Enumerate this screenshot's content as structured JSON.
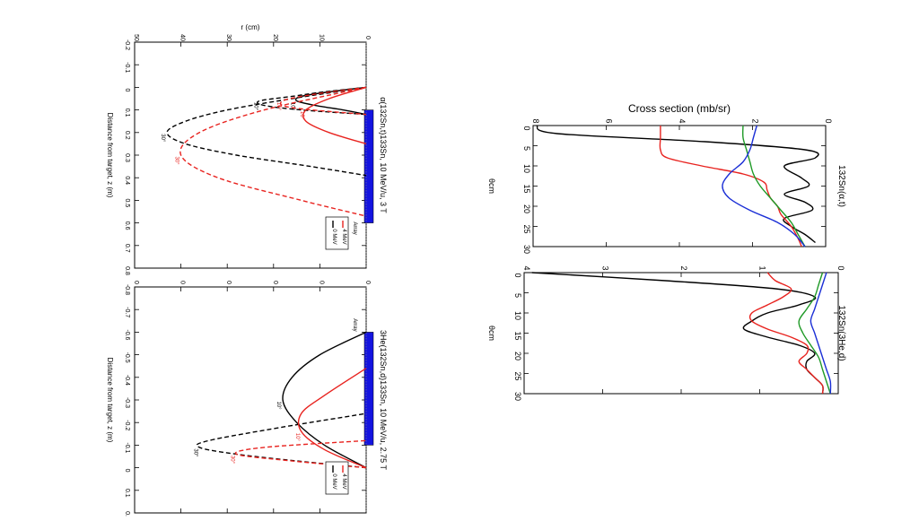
{
  "chart_data": [
    {
      "type": "line",
      "title": "α(132Sn,t)133Sn, 10 MeV/u, 3 T",
      "xlabel": "Distance from target, z (m)",
      "ylabel": "r (cm)",
      "xticks": [
        "-0.2",
        "-0.1",
        "0",
        "0.1",
        "0.2",
        "0.3",
        "0.4",
        "0.5",
        "0.6",
        "0.7",
        "0.8"
      ],
      "yticks": [
        "0",
        "10",
        "20",
        "30",
        "40",
        "50"
      ],
      "xlim": [
        -0.2,
        0.8
      ],
      "ylim": [
        0,
        50
      ],
      "array_label": "Array",
      "array_range": [
        0.1,
        0.6
      ],
      "series": [
        {
          "name": "0 MeV",
          "color": "#000000",
          "angle": "10°",
          "style": "solid",
          "x": [
            0,
            0.02,
            0.04,
            0.06,
            0.08,
            0.1,
            0.12
          ],
          "y": [
            0,
            8,
            14,
            15,
            11,
            5,
            0
          ]
        },
        {
          "name": "0 MeV",
          "color": "#000000",
          "angle": "10°",
          "style": "dashed",
          "x": [
            0,
            0.02,
            0.04,
            0.06,
            0.08,
            0.1,
            0.12
          ],
          "y": [
            0,
            9,
            16,
            23,
            22,
            14,
            0
          ]
        },
        {
          "name": "0 MeV",
          "color": "#000000",
          "angle": "30°",
          "style": "dashed",
          "x": [
            0,
            0.05,
            0.1,
            0.15,
            0.2,
            0.25,
            0.3,
            0.35,
            0.39
          ],
          "y": [
            0,
            16,
            30,
            39,
            43,
            39,
            28,
            12,
            0
          ]
        },
        {
          "name": "4 MeV",
          "color": "#e8231f",
          "angle": "10°",
          "style": "solid",
          "x": [
            0,
            0.05,
            0.1,
            0.15,
            0.2,
            0.25
          ],
          "y": [
            0,
            8,
            13,
            13,
            8,
            0
          ]
        },
        {
          "name": "4 MeV",
          "color": "#e8231f",
          "angle": "10°",
          "style": "dashed",
          "x": [
            0,
            0.03,
            0.06,
            0.09,
            0.12
          ],
          "y": [
            0,
            11,
            18,
            16,
            0
          ]
        },
        {
          "name": "4 MeV",
          "color": "#e8231f",
          "angle": "30°",
          "style": "dashed",
          "x": [
            0,
            0.1,
            0.2,
            0.3,
            0.4,
            0.5,
            0.57
          ],
          "y": [
            0,
            22,
            36,
            40,
            32,
            14,
            0
          ]
        }
      ],
      "legend": [
        "0 MeV",
        "4 MeV"
      ]
    },
    {
      "type": "line",
      "title": "3He(132Sn,d)133Sn, 10 MeV/u, 2.75 T",
      "xlabel": "Distance from target, z (m)",
      "ylabel": "",
      "xticks": [
        "-0.8",
        "-0.7",
        "-0.6",
        "-0.5",
        "-0.4",
        "-0.3",
        "-0.2",
        "-0.1",
        "0",
        "0.1",
        "0.2"
      ],
      "yticks": [
        "0",
        "0",
        "0",
        "0",
        "0",
        "0"
      ],
      "xlim": [
        -0.8,
        0.2
      ],
      "ylim": [
        0,
        50
      ],
      "array_label": "Array",
      "array_range": [
        -0.6,
        -0.1
      ],
      "series": [
        {
          "name": "0 MeV",
          "color": "#000000",
          "angle": "10°",
          "style": "solid",
          "x": [
            0,
            -0.1,
            -0.2,
            -0.3,
            -0.4,
            -0.5,
            -0.6
          ],
          "y": [
            0,
            9,
            15,
            18,
            16,
            10,
            0
          ]
        },
        {
          "name": "0 MeV",
          "color": "#000000",
          "angle": "30°",
          "style": "dashed",
          "x": [
            0,
            -0.03,
            -0.06,
            -0.09,
            -0.12,
            -0.18,
            -0.24
          ],
          "y": [
            0,
            15,
            28,
            36,
            34,
            18,
            0
          ]
        },
        {
          "name": "4 MeV",
          "color": "#e8231f",
          "angle": "10°",
          "style": "solid",
          "x": [
            0,
            -0.08,
            -0.16,
            -0.24,
            -0.32,
            -0.44
          ],
          "y": [
            0,
            9,
            14,
            14,
            9,
            0
          ]
        },
        {
          "name": "4 MeV",
          "color": "#e8231f",
          "angle": "30°",
          "style": "dashed",
          "x": [
            0,
            -0.03,
            -0.06,
            -0.09,
            -0.12
          ],
          "y": [
            0,
            16,
            28,
            22,
            0
          ]
        }
      ],
      "legend": [
        "0 MeV",
        "4 MeV"
      ]
    },
    {
      "type": "line",
      "title": "132Sn(α,t)",
      "xlabel": "θcm",
      "ylabel": "Cross section (mb/sr)",
      "xticks": [
        "0",
        "5",
        "10",
        "15",
        "20",
        "25",
        "30"
      ],
      "yticks": [
        "0",
        "2",
        "4",
        "6",
        "8"
      ],
      "xlim": [
        0,
        30
      ],
      "ylim": [
        0,
        8.5
      ],
      "series": [
        {
          "color": "#000000",
          "x": [
            0,
            2,
            4,
            6,
            8,
            10,
            13,
            15,
            17,
            19,
            21,
            23,
            25,
            27,
            29
          ],
          "y": [
            8.4,
            7.8,
            3.5,
            0.6,
            0.3,
            1.2,
            0.7,
            0.5,
            1.2,
            0.6,
            0.4,
            1.2,
            1.0,
            0.6,
            0.3
          ]
        },
        {
          "color": "#e8231f",
          "x": [
            0,
            3,
            6,
            8,
            10,
            12,
            14,
            16,
            18,
            20,
            22,
            25,
            28,
            30
          ],
          "y": [
            4.8,
            4.8,
            4.8,
            4.6,
            3.6,
            2.4,
            1.8,
            1.7,
            1.6,
            1.4,
            1.3,
            1.0,
            0.8,
            0.7
          ]
        },
        {
          "color": "#1f9a27",
          "x": [
            0,
            3,
            6,
            9,
            12,
            15,
            18,
            21,
            24,
            27,
            30
          ],
          "y": [
            2.4,
            2.4,
            2.3,
            2.2,
            2.1,
            1.9,
            1.6,
            1.3,
            1.0,
            0.8,
            0.6
          ]
        },
        {
          "color": "#1b2fd6",
          "x": [
            0,
            3,
            6,
            9,
            12,
            15,
            18,
            21,
            24,
            27,
            30
          ],
          "y": [
            2.0,
            2.1,
            2.2,
            2.4,
            2.8,
            3.0,
            2.8,
            2.2,
            1.4,
            0.9,
            0.6
          ]
        }
      ]
    },
    {
      "type": "line",
      "title": "132Sn(3He,d)",
      "xlabel": "θcm",
      "ylabel": "",
      "xticks": [
        "0",
        "5",
        "10",
        "15",
        "20",
        "25",
        "30"
      ],
      "yticks": [
        "0",
        "1",
        "2",
        "3",
        "4"
      ],
      "xlim": [
        0,
        30
      ],
      "ylim": [
        0,
        4
      ],
      "series": [
        {
          "color": "#000000",
          "x": [
            0,
            2,
            4,
            6,
            8,
            10,
            12,
            14,
            16,
            18,
            20,
            22,
            24,
            26,
            28,
            30
          ],
          "y": [
            3.9,
            2.2,
            0.8,
            0.3,
            0.5,
            0.9,
            1.1,
            1.2,
            0.9,
            0.5,
            0.3,
            0.4,
            0.4,
            0.3,
            0.2,
            0.2
          ]
        },
        {
          "color": "#e8231f",
          "x": [
            0,
            2,
            4,
            6,
            8,
            10,
            12,
            14,
            16,
            18,
            20,
            22,
            24,
            26,
            28,
            30
          ],
          "y": [
            0.9,
            0.8,
            0.6,
            0.7,
            0.9,
            1.1,
            1.1,
            0.9,
            0.6,
            0.4,
            0.4,
            0.5,
            0.4,
            0.3,
            0.2,
            0.2
          ]
        },
        {
          "color": "#1f9a27",
          "x": [
            0,
            3,
            6,
            9,
            12,
            15,
            18,
            21,
            24,
            27,
            30
          ],
          "y": [
            0.2,
            0.25,
            0.3,
            0.4,
            0.5,
            0.45,
            0.35,
            0.25,
            0.2,
            0.15,
            0.1
          ]
        },
        {
          "color": "#1b2fd6",
          "x": [
            0,
            3,
            6,
            9,
            12,
            15,
            18,
            21,
            24,
            27,
            30
          ],
          "y": [
            0.15,
            0.2,
            0.25,
            0.3,
            0.35,
            0.3,
            0.25,
            0.2,
            0.15,
            0.1,
            0.1
          ]
        }
      ]
    }
  ]
}
